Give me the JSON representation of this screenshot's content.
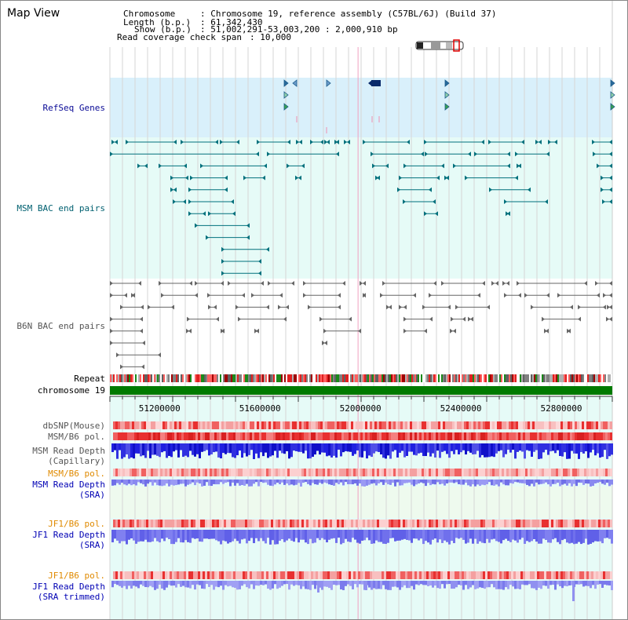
{
  "title": "Map View",
  "header": {
    "chromosome_label": "Chromosome",
    "chromosome_value": ": Chromosome 19, reference assembly (C57BL/6J) (Build 37)",
    "length_label": "Length (b.p.)",
    "length_value": ": 61,342,430",
    "show_label": "Show (b.p.)",
    "show_value": ": 51,002,291-53,003,200 : 2,000,910 bp",
    "coverage_label": "Read coverage check span",
    "coverage_value": ": 10,000"
  },
  "tracks": {
    "refseq": "RefSeq Genes",
    "msm_bac": "MSM BAC end pairs",
    "b6n_bac": "B6N BAC end pairs",
    "repeat": "Repeat",
    "chromosome": "chromosome 19",
    "dbsnp": "dbSNP(Mouse)",
    "msm_b6_pol_1": "MSM/B6 pol.",
    "msm_read_depth_cap_1": "MSM Read Depth",
    "msm_read_depth_cap_2": "(Capillary)",
    "msm_b6_pol_2": "MSM/B6 pol.",
    "msm_read_depth_sra_1": "MSM Read Depth",
    "msm_read_depth_sra_2": "(SRA)",
    "jf1_b6_pol_1": "JF1/B6 pol.",
    "jf1_read_depth_sra_1": "JF1 Read Depth",
    "jf1_read_depth_sra_2": "(SRA)",
    "jf1_b6_pol_2": "JF1/B6 pol.",
    "jf1_read_depth_trim_1": "JF1 Read Depth",
    "jf1_read_depth_trim_2": "(SRA trimmed)"
  },
  "axis": {
    "range_start": 51002291,
    "range_end": 53003200,
    "ticks": [
      "51200000",
      "51600000",
      "52000000",
      "52400000",
      "52800000"
    ]
  },
  "colors": {
    "refseq_bg": "#d9f0fb",
    "track_bg": "#e6fbf7",
    "chromosome": "#007a00",
    "refseq_label": "#0a0a96",
    "msm_label": "#006070",
    "b6n_label": "#555555",
    "pol_label_orange": "#e08a00",
    "depth_label_blue": "#0000b4",
    "msm_feature": "#00707c",
    "b6n_feature": "#666666",
    "depth_fill": "#6a6af0",
    "depth_fill_dark": "#2f2fe0",
    "pol_red": "#e83030"
  },
  "highlight_position": 52000000
}
